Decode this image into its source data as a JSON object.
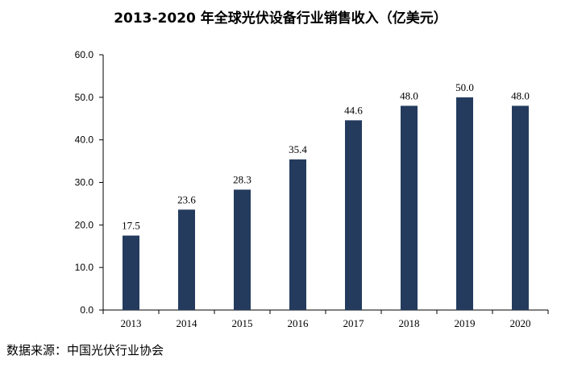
{
  "chart_data": {
    "type": "bar",
    "title": "2013-2020 年全球光伏设备行业销售收入（亿美元）",
    "categories": [
      "2013",
      "2014",
      "2015",
      "2016",
      "2017",
      "2018",
      "2019",
      "2020"
    ],
    "values": [
      17.5,
      23.6,
      28.3,
      35.4,
      44.6,
      48.0,
      50.0,
      48.0
    ],
    "value_labels": [
      "17.5",
      "23.6",
      "28.3",
      "35.4",
      "44.6",
      "48.0",
      "50.0",
      "48.0"
    ],
    "yticks": [
      "0.0",
      "10.0",
      "20.0",
      "30.0",
      "40.0",
      "50.0",
      "60.0"
    ],
    "ylim": [
      0,
      60
    ],
    "xlabel": "",
    "ylabel": "",
    "grid": false,
    "legend": false,
    "bar_color": "#243b5e"
  },
  "source": "数据来源：中国光伏行业协会"
}
